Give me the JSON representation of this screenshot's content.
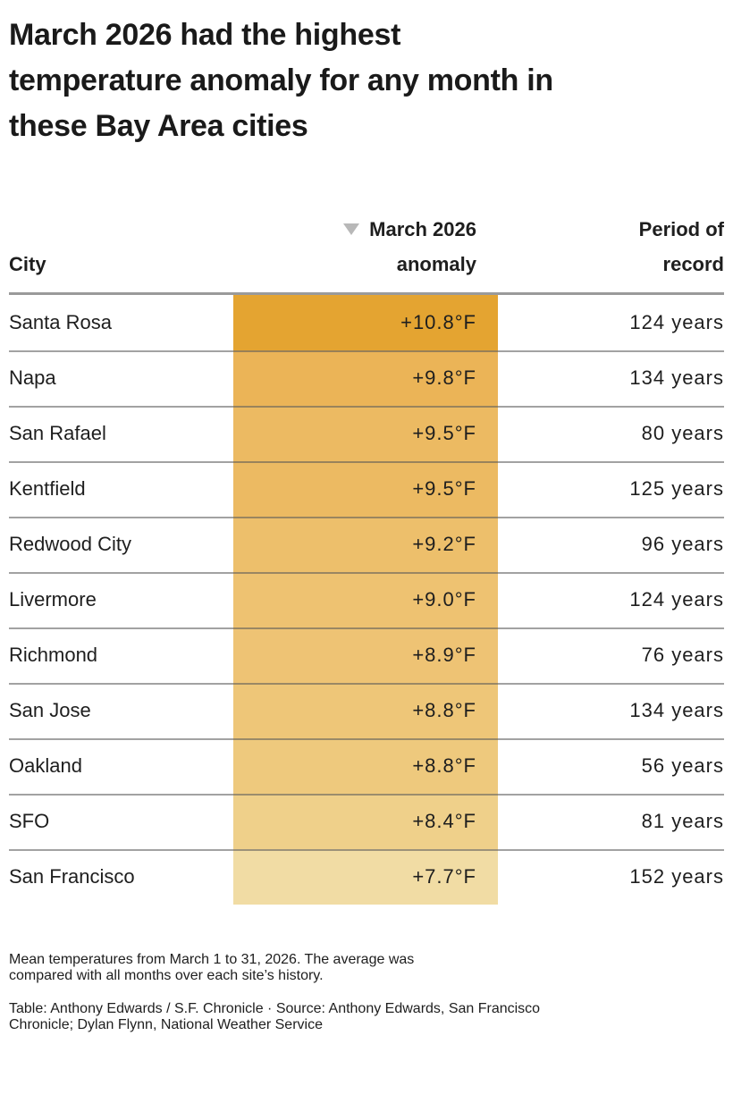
{
  "title_lines": [
    "March 2026 had the highest",
    "temperature anomaly for any month in",
    "these Bay Area cities"
  ],
  "header": {
    "city": "City",
    "anomaly_line1": "March 2026",
    "anomaly_line2": "anomaly",
    "period_line1": "Period of",
    "period_line2": "record",
    "sort_icon_glyph": "▼",
    "sorted_column": "March 2026 anomaly",
    "sort_direction": "descending"
  },
  "chart_data": {
    "type": "table",
    "title": "March 2026 had the highest temperature anomaly for any month in these Bay Area cities",
    "columns": [
      "City",
      "March 2026 anomaly",
      "Period of record"
    ],
    "heatmap_column": "March 2026 anomaly",
    "sort": {
      "column": "March 2026 anomaly",
      "direction": "desc"
    },
    "rows": [
      {
        "city": "Santa Rosa",
        "anomaly": "+10.8°F",
        "anomaly_value_f": 10.8,
        "period": "124 years",
        "period_years": 124,
        "cell_color": "#e4a431"
      },
      {
        "city": "Napa",
        "anomaly": "+9.8°F",
        "anomaly_value_f": 9.8,
        "period": "134 years",
        "period_years": 134,
        "cell_color": "#ebb457"
      },
      {
        "city": "San Rafael",
        "anomaly": "+9.5°F",
        "anomaly_value_f": 9.5,
        "period": "80 years",
        "period_years": 80,
        "cell_color": "#ecba62"
      },
      {
        "city": "Kentfield",
        "anomaly": "+9.5°F",
        "anomaly_value_f": 9.5,
        "period": "125 years",
        "period_years": 125,
        "cell_color": "#ecba62"
      },
      {
        "city": "Redwood City",
        "anomaly": "+9.2°F",
        "anomaly_value_f": 9.2,
        "period": "96 years",
        "period_years": 96,
        "cell_color": "#edbf6b"
      },
      {
        "city": "Livermore",
        "anomaly": "+9.0°F",
        "anomaly_value_f": 9.0,
        "period": "124 years",
        "period_years": 124,
        "cell_color": "#eec271"
      },
      {
        "city": "Richmond",
        "anomaly": "+8.9°F",
        "anomaly_value_f": 8.9,
        "period": "76 years",
        "period_years": 76,
        "cell_color": "#eec374"
      },
      {
        "city": "San Jose",
        "anomaly": "+8.8°F",
        "anomaly_value_f": 8.8,
        "period": "134 years",
        "period_years": 134,
        "cell_color": "#eec678"
      },
      {
        "city": "Oakland",
        "anomaly": "+8.8°F",
        "anomaly_value_f": 8.8,
        "period": "56 years",
        "period_years": 56,
        "cell_color": "#eec97d"
      },
      {
        "city": "SFO",
        "anomaly": "+8.4°F",
        "anomaly_value_f": 8.4,
        "period": "81 years",
        "period_years": 81,
        "cell_color": "#efd08a"
      },
      {
        "city": "San Francisco",
        "anomaly": "+7.7°F",
        "anomaly_value_f": 7.7,
        "period": "152 years",
        "period_years": 152,
        "cell_color": "#f1dca4"
      }
    ]
  },
  "notes_lines": [
    "Mean temperatures from March 1 to 31, 2026. The average was",
    "compared with all months over each site’s history."
  ],
  "credits_lines": [
    "Table: Anthony Edwards / S.F. Chronicle · Source: Anthony Edwards, San Francisco",
    "Chronicle; Dylan Flynn, National Weather Service"
  ],
  "colors": {
    "header_rule": "#9a9a9a",
    "row_divider": "rgba(85,85,85,0.55)",
    "sort_icon": "#b8b8b8",
    "title_text": "#1a1a1a",
    "body_text": "#1e1e1e",
    "notes_text": "#2e2e2e",
    "credits_text": "#9e9e9e",
    "heatmap_max": "#e4a431",
    "heatmap_min": "#f1dca4"
  }
}
